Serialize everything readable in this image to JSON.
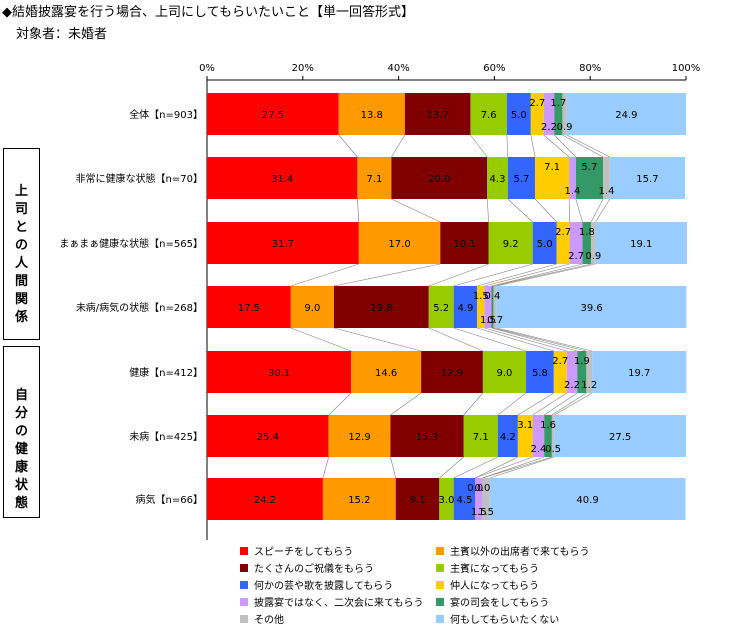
{
  "title": "◆結婚披露宴を行う場合、上司にしてもらいたいこと【単一回答形式】",
  "subtitle": "対象者：未婚者",
  "groups": [
    {
      "label": "上司との人間関係"
    },
    {
      "label": "自分の健康状態"
    }
  ],
  "chart_data": {
    "type": "bar",
    "orientation": "horizontal",
    "stacked": true,
    "xlim": [
      0,
      100
    ],
    "x_ticks": [
      "0%",
      "20%",
      "40%",
      "60%",
      "80%",
      "100%"
    ],
    "grid": false,
    "legend_position": "bottom",
    "categories": [
      "全体【n=903】",
      "非常に健康な状態【n=70】",
      "まぁまぁ健康な状態【n=565】",
      "未病/病気の状態【n=268】",
      "健康【n=412】",
      "未病【n=425】",
      "病気【n=66】"
    ],
    "series": [
      {
        "name": "スピーチをしてもらう",
        "color": "#ff0000",
        "values": [
          27.5,
          31.4,
          31.7,
          17.5,
          30.1,
          25.4,
          24.2
        ]
      },
      {
        "name": "たくさんのご祝儀をもらう",
        "color": "#800000",
        "values": [
          13.7,
          20.0,
          10.1,
          19.8,
          12.9,
          15.3,
          9.1
        ]
      },
      {
        "name": "何かの芸や歌を披露してもらう",
        "color": "#3366ff",
        "values": [
          5.0,
          5.7,
          5.0,
          4.9,
          5.8,
          4.2,
          4.5
        ]
      },
      {
        "name": "披露宴ではなく、二次会に来てもらう",
        "color": "#cc99ff",
        "values": [
          2.2,
          1.4,
          2.7,
          1.5,
          2.2,
          2.4,
          1.5
        ]
      },
      {
        "name": "その他",
        "color": "#c0c0c0",
        "values": [
          0.9,
          1.4,
          0.9,
          0.7,
          1.2,
          0.5,
          1.5
        ]
      },
      {
        "name": "主賓以外の出席者で来てもらう",
        "color": "#ff9900",
        "values": [
          13.8,
          7.1,
          17.0,
          9.0,
          14.6,
          12.9,
          15.2
        ]
      },
      {
        "name": "主賓になってもらう",
        "color": "#99cc00",
        "values": [
          7.6,
          4.3,
          9.2,
          5.2,
          9.0,
          7.1,
          3.0
        ]
      },
      {
        "name": "仲人になってもらう",
        "color": "#ffcc00",
        "values": [
          2.7,
          7.1,
          2.7,
          1.5,
          2.7,
          3.1,
          0.0
        ]
      },
      {
        "name": "宴の司会をしてもらう",
        "color": "#339966",
        "values": [
          1.7,
          5.7,
          1.8,
          0.4,
          1.9,
          1.6,
          0.0
        ]
      },
      {
        "name": "何もしてもらいたくない",
        "color": "#99ccff",
        "values": [
          24.9,
          15.7,
          19.1,
          39.6,
          19.7,
          27.5,
          40.9
        ]
      }
    ],
    "stack_order": [
      "スピーチをしてもらう",
      "主賓以外の出席者で来てもらう",
      "たくさんのご祝儀をもらう",
      "主賓になってもらう",
      "何かの芸や歌を披露してもらう",
      "仲人になってもらう",
      "披露宴ではなく、二次会に来てもらう",
      "宴の司会をしてもらう",
      "その他",
      "何もしてもらいたくない"
    ]
  }
}
